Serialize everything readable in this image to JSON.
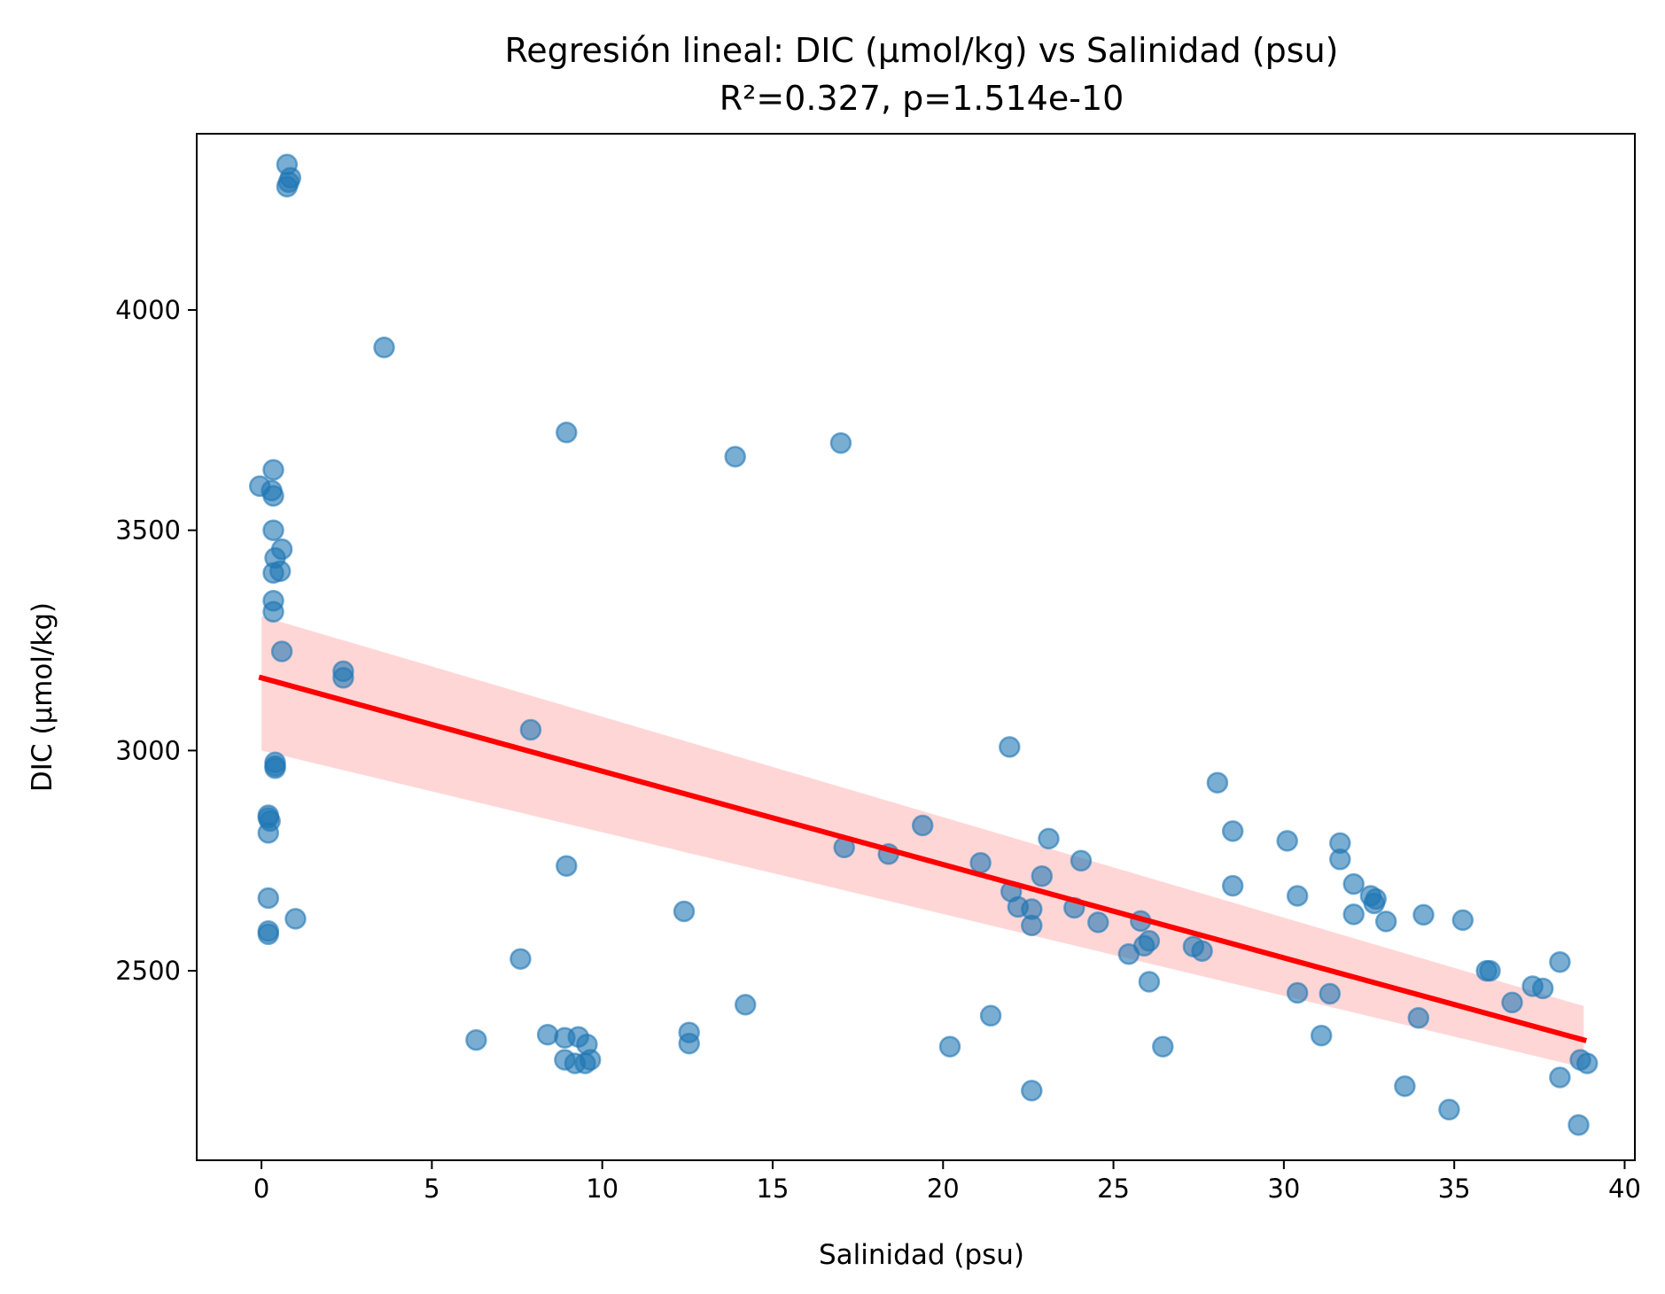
{
  "chart_data": {
    "type": "scatter",
    "title": "Regresión lineal: DIC (μmol/kg) vs Salinidad (psu)",
    "subtitle": "R²=0.327, p=1.514e-10",
    "xlabel": "Salinidad (psu)",
    "ylabel": "DIC (μmol/kg)",
    "xlim": [
      -1.9,
      40.3
    ],
    "ylim": [
      2070,
      4400
    ],
    "xticks": [
      0,
      5,
      10,
      15,
      20,
      25,
      30,
      35,
      40
    ],
    "xtick_labels": [
      "0",
      "5",
      "10",
      "15",
      "20",
      "25",
      "30",
      "35",
      "40"
    ],
    "yticks": [
      2500,
      3000,
      3500,
      4000
    ],
    "ytick_labels": [
      "2500",
      "3000",
      "3500",
      "4000"
    ],
    "grid": false,
    "colors": {
      "points": "#1f77b4",
      "regression_line": "#ff0000",
      "confidence_band": "#ffcccc"
    },
    "regression": {
      "x": [
        0.0,
        38.8
      ],
      "y": [
        3165,
        2343
      ],
      "band_lower": [
        3000,
        2280
      ],
      "band_upper": [
        3305,
        2420
      ]
    },
    "series": [
      {
        "points": [
          [
            0.75,
            4330
          ],
          [
            0.85,
            4300
          ],
          [
            0.8,
            4290
          ],
          [
            0.75,
            4280
          ],
          [
            3.6,
            3915
          ],
          [
            8.95,
            3722
          ],
          [
            13.9,
            3667
          ],
          [
            17.0,
            3698
          ],
          [
            -0.05,
            3600
          ],
          [
            0.35,
            3637
          ],
          [
            0.3,
            3590
          ],
          [
            0.35,
            3578
          ],
          [
            0.35,
            3500
          ],
          [
            0.6,
            3457
          ],
          [
            0.4,
            3437
          ],
          [
            0.55,
            3407
          ],
          [
            0.35,
            3403
          ],
          [
            0.35,
            3340
          ],
          [
            0.35,
            3315
          ],
          [
            0.6,
            3225
          ],
          [
            2.4,
            3180
          ],
          [
            2.4,
            3165
          ],
          [
            7.9,
            3047
          ],
          [
            0.4,
            2973
          ],
          [
            0.4,
            2965
          ],
          [
            0.4,
            2960
          ],
          [
            0.2,
            2853
          ],
          [
            0.2,
            2847
          ],
          [
            0.25,
            2840
          ],
          [
            0.2,
            2813
          ],
          [
            0.2,
            2665
          ],
          [
            1.0,
            2618
          ],
          [
            0.2,
            2590
          ],
          [
            0.2,
            2583
          ],
          [
            7.6,
            2527
          ],
          [
            8.95,
            2738
          ],
          [
            12.4,
            2635
          ],
          [
            14.2,
            2423
          ],
          [
            6.3,
            2343
          ],
          [
            8.4,
            2355
          ],
          [
            8.9,
            2348
          ],
          [
            8.9,
            2298
          ],
          [
            9.3,
            2350
          ],
          [
            9.55,
            2333
          ],
          [
            9.2,
            2290
          ],
          [
            9.5,
            2290
          ],
          [
            9.65,
            2298
          ],
          [
            12.55,
            2360
          ],
          [
            12.55,
            2335
          ],
          [
            17.1,
            2780
          ],
          [
            18.4,
            2765
          ],
          [
            19.4,
            2830
          ],
          [
            20.2,
            2328
          ],
          [
            21.1,
            2745
          ],
          [
            21.4,
            2398
          ],
          [
            21.95,
            3008
          ],
          [
            22.0,
            2680
          ],
          [
            22.2,
            2645
          ],
          [
            22.6,
            2640
          ],
          [
            22.6,
            2603
          ],
          [
            22.6,
            2228
          ],
          [
            22.9,
            2715
          ],
          [
            23.1,
            2800
          ],
          [
            23.85,
            2643
          ],
          [
            24.05,
            2750
          ],
          [
            24.55,
            2610
          ],
          [
            25.45,
            2538
          ],
          [
            25.8,
            2613
          ],
          [
            25.9,
            2557
          ],
          [
            26.05,
            2568
          ],
          [
            26.05,
            2475
          ],
          [
            26.45,
            2328
          ],
          [
            27.35,
            2555
          ],
          [
            27.6,
            2545
          ],
          [
            28.05,
            2927
          ],
          [
            28.5,
            2817
          ],
          [
            28.5,
            2693
          ],
          [
            30.1,
            2795
          ],
          [
            30.4,
            2670
          ],
          [
            30.4,
            2450
          ],
          [
            31.1,
            2353
          ],
          [
            31.35,
            2448
          ],
          [
            31.65,
            2790
          ],
          [
            31.65,
            2753
          ],
          [
            32.05,
            2697
          ],
          [
            32.05,
            2628
          ],
          [
            32.55,
            2670
          ],
          [
            32.7,
            2663
          ],
          [
            32.65,
            2653
          ],
          [
            33.0,
            2612
          ],
          [
            33.55,
            2238
          ],
          [
            33.95,
            2393
          ],
          [
            34.1,
            2627
          ],
          [
            34.85,
            2185
          ],
          [
            35.25,
            2615
          ],
          [
            35.95,
            2500
          ],
          [
            36.05,
            2500
          ],
          [
            36.7,
            2428
          ],
          [
            37.3,
            2465
          ],
          [
            37.6,
            2460
          ],
          [
            38.1,
            2520
          ],
          [
            38.1,
            2258
          ],
          [
            38.7,
            2298
          ],
          [
            38.65,
            2150
          ],
          [
            38.9,
            2290
          ]
        ]
      }
    ]
  }
}
